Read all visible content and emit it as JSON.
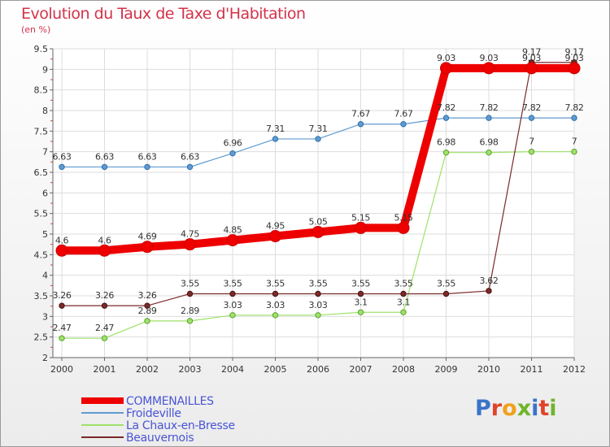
{
  "header": {
    "title": "Evolution du Taux de Taxe d'Habitation",
    "subtitle": "(en %)"
  },
  "logo": {
    "text": "Proxiti",
    "letter_colors": [
      "#3a73c9",
      "#e0442b",
      "#f2a01c",
      "#6fb52b",
      "#3a73c9",
      "#e0442b",
      "#6fb52b"
    ]
  },
  "chart_data": {
    "type": "line",
    "title": "Evolution du Taux de Taxe d'Habitation",
    "subtitle": "(en %)",
    "xlabel": "",
    "ylabel": "",
    "x": [
      "2000",
      "2001",
      "2002",
      "2003",
      "2004",
      "2005",
      "2006",
      "2007",
      "2008",
      "2009",
      "2010",
      "2011",
      "2012"
    ],
    "ylim": [
      2,
      9.5
    ],
    "yticks": [
      2,
      2.5,
      3,
      3.5,
      4,
      4.5,
      5,
      5.5,
      6,
      6.5,
      7,
      7.5,
      8,
      8.5,
      9,
      9.5
    ],
    "ytick_labels": [
      "2",
      "2.5",
      "3",
      "3.5",
      "4",
      "4.5",
      "5",
      "5.5",
      "6",
      "6.5",
      "7",
      "7.5",
      "8",
      "8.5",
      "9",
      "9.5"
    ],
    "grid": true,
    "legend_position": "bottom-left",
    "series": [
      {
        "name": "COMMENAILLES",
        "color": "#ee0000",
        "emphasis": true,
        "values": [
          4.6,
          4.6,
          4.69,
          4.75,
          4.85,
          4.95,
          5.05,
          5.15,
          5.15,
          9.03,
          9.03,
          9.03,
          9.03
        ],
        "labels": [
          "4.6",
          "4.6",
          "4.69",
          "4.75",
          "4.85",
          "4.95",
          "5.05",
          "5.15",
          "5.15",
          "9.03",
          "9.03",
          "9.03",
          "9.03"
        ]
      },
      {
        "name": "Froideville",
        "color": "#5f9bd0",
        "values": [
          6.63,
          6.63,
          6.63,
          6.63,
          6.96,
          7.31,
          7.31,
          7.67,
          7.67,
          7.82,
          7.82,
          7.82,
          7.82
        ],
        "labels": [
          "6.63",
          "6.63",
          "6.63",
          "6.63",
          "6.96",
          "7.31",
          "7.31",
          "7.67",
          "7.67",
          "7.82",
          "7.82",
          "7.82",
          "7.82"
        ]
      },
      {
        "name": "La Chaux-en-Bresse",
        "color": "#9ee26a",
        "values": [
          2.47,
          2.47,
          2.89,
          2.89,
          3.03,
          3.03,
          3.03,
          3.1,
          3.1,
          6.98,
          6.98,
          7,
          7
        ],
        "labels": [
          "2.47",
          "2.47",
          "2.89",
          "2.89",
          "3.03",
          "3.03",
          "3.03",
          "3.1",
          "3.1",
          "6.98",
          "6.98",
          "7",
          "7"
        ]
      },
      {
        "name": "Beauvernois",
        "color": "#7a2a2a",
        "values": [
          3.26,
          3.26,
          3.26,
          3.55,
          3.55,
          3.55,
          3.55,
          3.55,
          3.55,
          3.55,
          3.62,
          9.17,
          9.17
        ],
        "labels": [
          "3.26",
          "3.26",
          "3.26",
          "3.55",
          "3.55",
          "3.55",
          "3.55",
          "3.55",
          "3.55",
          "3.55",
          "3.62",
          "9.17",
          "9.17"
        ]
      }
    ]
  }
}
